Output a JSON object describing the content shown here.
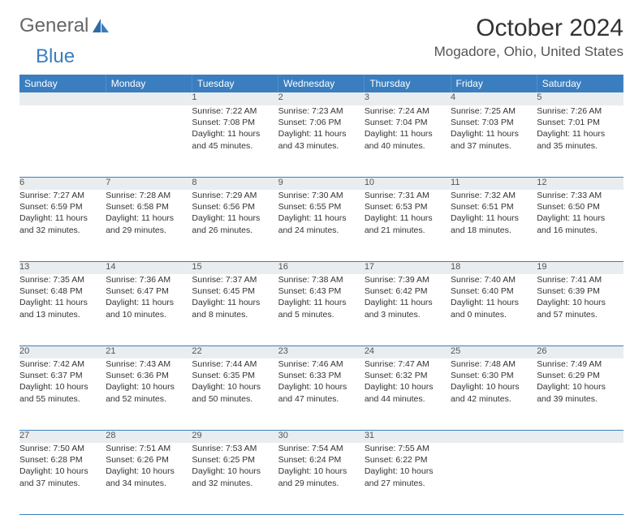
{
  "brand": {
    "part1": "General",
    "part2": "Blue"
  },
  "title": "October 2024",
  "location": "Mogadore, Ohio, United States",
  "colors": {
    "header_bg": "#3a7ebf",
    "daynum_bg": "#e9edf0",
    "border": "#3a7ebf",
    "text": "#333333",
    "brand_gray": "#666666",
    "brand_blue": "#3a7ebf"
  },
  "weekdays": [
    "Sunday",
    "Monday",
    "Tuesday",
    "Wednesday",
    "Thursday",
    "Friday",
    "Saturday"
  ],
  "weeks": [
    {
      "nums": [
        "",
        "",
        "1",
        "2",
        "3",
        "4",
        "5"
      ],
      "cells": [
        null,
        null,
        {
          "sunrise": "Sunrise: 7:22 AM",
          "sunset": "Sunset: 7:08 PM",
          "day1": "Daylight: 11 hours",
          "day2": "and 45 minutes."
        },
        {
          "sunrise": "Sunrise: 7:23 AM",
          "sunset": "Sunset: 7:06 PM",
          "day1": "Daylight: 11 hours",
          "day2": "and 43 minutes."
        },
        {
          "sunrise": "Sunrise: 7:24 AM",
          "sunset": "Sunset: 7:04 PM",
          "day1": "Daylight: 11 hours",
          "day2": "and 40 minutes."
        },
        {
          "sunrise": "Sunrise: 7:25 AM",
          "sunset": "Sunset: 7:03 PM",
          "day1": "Daylight: 11 hours",
          "day2": "and 37 minutes."
        },
        {
          "sunrise": "Sunrise: 7:26 AM",
          "sunset": "Sunset: 7:01 PM",
          "day1": "Daylight: 11 hours",
          "day2": "and 35 minutes."
        }
      ]
    },
    {
      "nums": [
        "6",
        "7",
        "8",
        "9",
        "10",
        "11",
        "12"
      ],
      "cells": [
        {
          "sunrise": "Sunrise: 7:27 AM",
          "sunset": "Sunset: 6:59 PM",
          "day1": "Daylight: 11 hours",
          "day2": "and 32 minutes."
        },
        {
          "sunrise": "Sunrise: 7:28 AM",
          "sunset": "Sunset: 6:58 PM",
          "day1": "Daylight: 11 hours",
          "day2": "and 29 minutes."
        },
        {
          "sunrise": "Sunrise: 7:29 AM",
          "sunset": "Sunset: 6:56 PM",
          "day1": "Daylight: 11 hours",
          "day2": "and 26 minutes."
        },
        {
          "sunrise": "Sunrise: 7:30 AM",
          "sunset": "Sunset: 6:55 PM",
          "day1": "Daylight: 11 hours",
          "day2": "and 24 minutes."
        },
        {
          "sunrise": "Sunrise: 7:31 AM",
          "sunset": "Sunset: 6:53 PM",
          "day1": "Daylight: 11 hours",
          "day2": "and 21 minutes."
        },
        {
          "sunrise": "Sunrise: 7:32 AM",
          "sunset": "Sunset: 6:51 PM",
          "day1": "Daylight: 11 hours",
          "day2": "and 18 minutes."
        },
        {
          "sunrise": "Sunrise: 7:33 AM",
          "sunset": "Sunset: 6:50 PM",
          "day1": "Daylight: 11 hours",
          "day2": "and 16 minutes."
        }
      ]
    },
    {
      "nums": [
        "13",
        "14",
        "15",
        "16",
        "17",
        "18",
        "19"
      ],
      "cells": [
        {
          "sunrise": "Sunrise: 7:35 AM",
          "sunset": "Sunset: 6:48 PM",
          "day1": "Daylight: 11 hours",
          "day2": "and 13 minutes."
        },
        {
          "sunrise": "Sunrise: 7:36 AM",
          "sunset": "Sunset: 6:47 PM",
          "day1": "Daylight: 11 hours",
          "day2": "and 10 minutes."
        },
        {
          "sunrise": "Sunrise: 7:37 AM",
          "sunset": "Sunset: 6:45 PM",
          "day1": "Daylight: 11 hours",
          "day2": "and 8 minutes."
        },
        {
          "sunrise": "Sunrise: 7:38 AM",
          "sunset": "Sunset: 6:43 PM",
          "day1": "Daylight: 11 hours",
          "day2": "and 5 minutes."
        },
        {
          "sunrise": "Sunrise: 7:39 AM",
          "sunset": "Sunset: 6:42 PM",
          "day1": "Daylight: 11 hours",
          "day2": "and 3 minutes."
        },
        {
          "sunrise": "Sunrise: 7:40 AM",
          "sunset": "Sunset: 6:40 PM",
          "day1": "Daylight: 11 hours",
          "day2": "and 0 minutes."
        },
        {
          "sunrise": "Sunrise: 7:41 AM",
          "sunset": "Sunset: 6:39 PM",
          "day1": "Daylight: 10 hours",
          "day2": "and 57 minutes."
        }
      ]
    },
    {
      "nums": [
        "20",
        "21",
        "22",
        "23",
        "24",
        "25",
        "26"
      ],
      "cells": [
        {
          "sunrise": "Sunrise: 7:42 AM",
          "sunset": "Sunset: 6:37 PM",
          "day1": "Daylight: 10 hours",
          "day2": "and 55 minutes."
        },
        {
          "sunrise": "Sunrise: 7:43 AM",
          "sunset": "Sunset: 6:36 PM",
          "day1": "Daylight: 10 hours",
          "day2": "and 52 minutes."
        },
        {
          "sunrise": "Sunrise: 7:44 AM",
          "sunset": "Sunset: 6:35 PM",
          "day1": "Daylight: 10 hours",
          "day2": "and 50 minutes."
        },
        {
          "sunrise": "Sunrise: 7:46 AM",
          "sunset": "Sunset: 6:33 PM",
          "day1": "Daylight: 10 hours",
          "day2": "and 47 minutes."
        },
        {
          "sunrise": "Sunrise: 7:47 AM",
          "sunset": "Sunset: 6:32 PM",
          "day1": "Daylight: 10 hours",
          "day2": "and 44 minutes."
        },
        {
          "sunrise": "Sunrise: 7:48 AM",
          "sunset": "Sunset: 6:30 PM",
          "day1": "Daylight: 10 hours",
          "day2": "and 42 minutes."
        },
        {
          "sunrise": "Sunrise: 7:49 AM",
          "sunset": "Sunset: 6:29 PM",
          "day1": "Daylight: 10 hours",
          "day2": "and 39 minutes."
        }
      ]
    },
    {
      "nums": [
        "27",
        "28",
        "29",
        "30",
        "31",
        "",
        ""
      ],
      "cells": [
        {
          "sunrise": "Sunrise: 7:50 AM",
          "sunset": "Sunset: 6:28 PM",
          "day1": "Daylight: 10 hours",
          "day2": "and 37 minutes."
        },
        {
          "sunrise": "Sunrise: 7:51 AM",
          "sunset": "Sunset: 6:26 PM",
          "day1": "Daylight: 10 hours",
          "day2": "and 34 minutes."
        },
        {
          "sunrise": "Sunrise: 7:53 AM",
          "sunset": "Sunset: 6:25 PM",
          "day1": "Daylight: 10 hours",
          "day2": "and 32 minutes."
        },
        {
          "sunrise": "Sunrise: 7:54 AM",
          "sunset": "Sunset: 6:24 PM",
          "day1": "Daylight: 10 hours",
          "day2": "and 29 minutes."
        },
        {
          "sunrise": "Sunrise: 7:55 AM",
          "sunset": "Sunset: 6:22 PM",
          "day1": "Daylight: 10 hours",
          "day2": "and 27 minutes."
        },
        null,
        null
      ]
    }
  ]
}
